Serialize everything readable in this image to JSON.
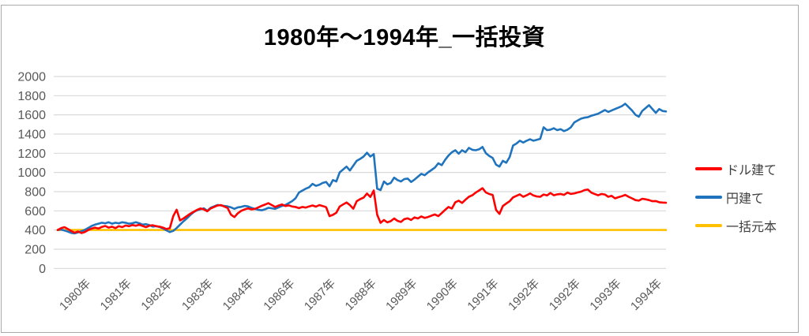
{
  "title": "1980年〜1994年_一括投資",
  "colors": {
    "background": "#FFFFFF",
    "frame_border": "#A9A9A9",
    "gridline": "#D9D9D9",
    "axis_text": "#595959",
    "legend_text": "#3F3F3F",
    "title_text": "#000000",
    "series_usd": "#FF0000",
    "series_jpy": "#1F74BD",
    "series_principal": "#FFC000"
  },
  "legend": {
    "position": "right",
    "items": [
      {
        "id": "usd",
        "label": "ドル建て",
        "color": "#FF0000"
      },
      {
        "id": "jpy",
        "label": "円建て",
        "color": "#1F74BD"
      },
      {
        "id": "principal",
        "label": "一括元本",
        "color": "#FFC000"
      }
    ]
  },
  "chart_data": {
    "type": "line",
    "title": "1980年〜1994年_一括投資",
    "xlabel": "",
    "ylabel": "",
    "ylim": [
      0,
      2000
    ],
    "y_ticks": [
      0,
      200,
      400,
      600,
      800,
      1000,
      1200,
      1400,
      1600,
      1800,
      2000
    ],
    "grid": true,
    "legend_position": "right",
    "x_tick_labels": [
      "1980年",
      "1981年",
      "1982年",
      "1983年",
      "1984年",
      "1986年",
      "1987年",
      "1988年",
      "1989年",
      "1990年",
      "1991年",
      "1992年",
      "1992年",
      "1993年",
      "1994年"
    ],
    "series": [
      {
        "id": "usd",
        "name": "ドル建て",
        "color": "#FF0000",
        "values": [
          400,
          420,
          430,
          410,
          390,
          372,
          385,
          368,
          380,
          400,
          415,
          425,
          415,
          432,
          442,
          425,
          435,
          420,
          440,
          430,
          447,
          440,
          452,
          445,
          455,
          442,
          430,
          445,
          450,
          440,
          435,
          425,
          410,
          420,
          545,
          612,
          500,
          520,
          545,
          570,
          590,
          610,
          625,
          615,
          595,
          625,
          640,
          655,
          660,
          645,
          630,
          560,
          535,
          575,
          600,
          615,
          625,
          615,
          620,
          635,
          652,
          665,
          680,
          660,
          640,
          655,
          667,
          650,
          657,
          645,
          640,
          628,
          640,
          634,
          646,
          656,
          644,
          660,
          650,
          638,
          545,
          558,
          580,
          645,
          667,
          687,
          660,
          622,
          700,
          722,
          737,
          780,
          745,
          812,
          560,
          475,
          505,
          480,
          492,
          520,
          496,
          484,
          514,
          522,
          505,
          532,
          520,
          542,
          526,
          536,
          550,
          562,
          545,
          576,
          610,
          640,
          624,
          690,
          706,
          682,
          716,
          746,
          762,
          790,
          812,
          836,
          792,
          775,
          766,
          610,
          568,
          650,
          676,
          700,
          740,
          756,
          772,
          746,
          762,
          782,
          760,
          750,
          746,
          770,
          760,
          786,
          762,
          772,
          776,
          766,
          790,
          776,
          782,
          792,
          800,
          816,
          822,
          790,
          776,
          762,
          776,
          770,
          746,
          756,
          730,
          742,
          752,
          766,
          746,
          730,
          712,
          706,
          726,
          720,
          712,
          700,
          702,
          690,
          686,
          684
        ]
      },
      {
        "id": "jpy",
        "name": "円建て",
        "color": "#1F74BD",
        "values": [
          400,
          405,
          395,
          383,
          370,
          365,
          376,
          388,
          402,
          422,
          442,
          456,
          466,
          476,
          470,
          481,
          466,
          476,
          470,
          481,
          476,
          466,
          471,
          481,
          471,
          456,
          461,
          451,
          436,
          441,
          431,
          416,
          396,
          379,
          391,
          421,
          456,
          491,
          521,
          556,
          586,
          606,
          616,
          626,
          601,
          631,
          646,
          661,
          657,
          651,
          646,
          636,
          621,
          636,
          641,
          651,
          646,
          631,
          621,
          611,
          606,
          616,
          631,
          626,
          621,
          636,
          651,
          661,
          681,
          701,
          731,
          791,
          811,
          831,
          846,
          881,
          861,
          871,
          891,
          901,
          856,
          921,
          906,
          1001,
          1031,
          1061,
          1021,
          1071,
          1121,
          1141,
          1166,
          1206,
          1166,
          1191,
          831,
          816,
          906,
          876,
          891,
          946,
          921,
          906,
          931,
          936,
          901,
          926,
          956,
          986,
          971,
          1001,
          1026,
          1051,
          1096,
          1076,
          1131,
          1176,
          1211,
          1231,
          1196,
          1231,
          1211,
          1256,
          1236,
          1231,
          1241,
          1266,
          1201,
          1171,
          1151,
          1081,
          1061,
          1121,
          1101,
          1161,
          1281,
          1301,
          1331,
          1311,
          1331,
          1346,
          1331,
          1341,
          1351,
          1471,
          1441,
          1446,
          1461,
          1441,
          1451,
          1431,
          1446,
          1471,
          1521,
          1541,
          1561,
          1571,
          1576,
          1591,
          1601,
          1611,
          1631,
          1651,
          1631,
          1646,
          1661,
          1676,
          1691,
          1716,
          1681,
          1646,
          1601,
          1581,
          1641,
          1671,
          1701,
          1661,
          1621,
          1661,
          1641,
          1636
        ]
      },
      {
        "id": "principal",
        "name": "一括元本",
        "color": "#FFC000",
        "constant_value": 400
      }
    ]
  }
}
